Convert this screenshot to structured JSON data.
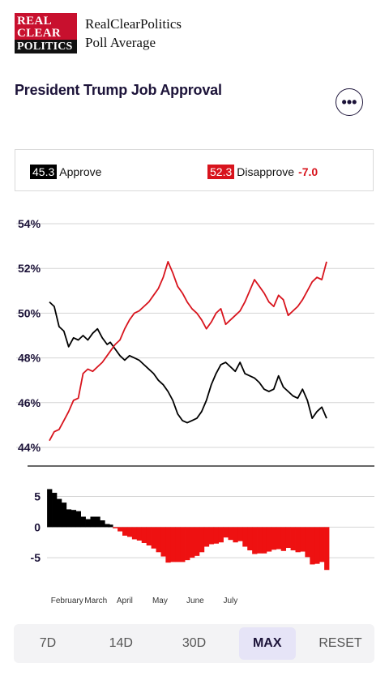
{
  "logo": {
    "line1": "REAL",
    "line2": "CLEAR",
    "line3": "POLITICS"
  },
  "brand": {
    "line1": "RealClearPolitics",
    "line2": "Poll Average"
  },
  "title": "President Trump Job Approval",
  "more_icon": "more-horizontal-icon",
  "legend": {
    "approve": {
      "value": "45.3",
      "label": "Approve",
      "color": "#000000"
    },
    "disapprove": {
      "value": "52.3",
      "label": "Disapprove",
      "color": "#d8141d"
    },
    "spread": "-7.0"
  },
  "tabs": [
    {
      "label": "7D",
      "active": false
    },
    {
      "label": "14D",
      "active": false
    },
    {
      "label": "30D",
      "active": false
    },
    {
      "label": "MAX",
      "active": true
    },
    {
      "label": "RESET",
      "active": false
    }
  ],
  "chart_data": [
    {
      "type": "line",
      "ylim": [
        44,
        54
      ],
      "y_ticks": [
        "54%",
        "52%",
        "50%",
        "48%",
        "46%",
        "44%"
      ],
      "grid": true,
      "x_tick_labels": [
        "February",
        "March",
        "April",
        "May",
        "June",
        "July"
      ],
      "series": [
        {
          "name": "Approve",
          "color": "#000000",
          "x": [
            0,
            3,
            6,
            9,
            12,
            15,
            18,
            21,
            24,
            27,
            30,
            33,
            36,
            38,
            41,
            44,
            47,
            50,
            53,
            56,
            59,
            62,
            65,
            68,
            71,
            74,
            77,
            80,
            83,
            86,
            89,
            92,
            95,
            98,
            101,
            104,
            107,
            110,
            113,
            116,
            119,
            122,
            125,
            128,
            131,
            134,
            137,
            140,
            143,
            146,
            149,
            152,
            155,
            158,
            161,
            164,
            167,
            170,
            173
          ],
          "values": [
            50.5,
            50.3,
            49.4,
            49.2,
            48.5,
            48.9,
            48.8,
            49.0,
            48.8,
            49.1,
            49.3,
            48.9,
            48.6,
            48.7,
            48.4,
            48.1,
            47.9,
            48.1,
            48.0,
            47.9,
            47.7,
            47.5,
            47.3,
            47.0,
            46.8,
            46.5,
            46.1,
            45.5,
            45.2,
            45.1,
            45.2,
            45.3,
            45.6,
            46.1,
            46.8,
            47.3,
            47.7,
            47.8,
            47.6,
            47.4,
            47.8,
            47.3,
            47.2,
            47.1,
            46.9,
            46.6,
            46.5,
            46.6,
            47.2,
            46.7,
            46.5,
            46.3,
            46.2,
            46.6,
            46.1,
            45.3,
            45.6,
            45.8,
            45.3
          ]
        },
        {
          "name": "Disapprove",
          "color": "#d8141d",
          "x": [
            0,
            3,
            6,
            9,
            12,
            15,
            18,
            21,
            24,
            27,
            30,
            33,
            36,
            38,
            41,
            44,
            47,
            50,
            53,
            56,
            59,
            62,
            65,
            68,
            71,
            74,
            77,
            80,
            83,
            86,
            89,
            92,
            95,
            98,
            101,
            104,
            107,
            110,
            113,
            116,
            119,
            122,
            125,
            128,
            131,
            134,
            137,
            140,
            143,
            146,
            149,
            152,
            155,
            158,
            161,
            164,
            167,
            170,
            173
          ],
          "values": [
            44.3,
            44.7,
            44.8,
            45.2,
            45.6,
            46.1,
            46.2,
            47.3,
            47.5,
            47.4,
            47.6,
            47.8,
            48.1,
            48.3,
            48.6,
            48.8,
            49.3,
            49.7,
            50.0,
            50.1,
            50.3,
            50.5,
            50.8,
            51.1,
            51.6,
            52.3,
            51.8,
            51.2,
            50.9,
            50.5,
            50.2,
            50.0,
            49.7,
            49.3,
            49.6,
            50.0,
            50.2,
            49.5,
            49.7,
            49.9,
            50.1,
            50.5,
            51.0,
            51.5,
            51.2,
            50.9,
            50.5,
            50.3,
            50.8,
            50.6,
            49.9,
            50.1,
            50.3,
            50.6,
            51.0,
            51.4,
            51.6,
            51.5,
            52.3
          ]
        }
      ]
    },
    {
      "type": "bar",
      "ylim": [
        -7.5,
        6
      ],
      "y_ticks": [
        "5",
        "0",
        "-5"
      ],
      "x_tick_labels": [
        "February",
        "March",
        "April",
        "May",
        "June",
        "July"
      ],
      "series": [
        {
          "name": "Spread",
          "x": [
            0,
            3,
            6,
            9,
            12,
            15,
            18,
            21,
            24,
            27,
            30,
            33,
            36,
            38,
            41,
            44,
            47,
            50,
            53,
            56,
            59,
            62,
            65,
            68,
            71,
            74,
            77,
            80,
            83,
            86,
            89,
            92,
            95,
            98,
            101,
            104,
            107,
            110,
            113,
            116,
            119,
            122,
            125,
            128,
            131,
            134,
            137,
            140,
            143,
            146,
            149,
            152,
            155,
            158,
            161,
            164,
            167,
            170,
            173
          ],
          "values": [
            6.2,
            5.6,
            4.6,
            4.0,
            2.9,
            2.8,
            2.6,
            1.7,
            1.3,
            1.7,
            1.7,
            1.1,
            0.5,
            0.4,
            -0.2,
            -0.7,
            -1.4,
            -1.6,
            -2.0,
            -2.2,
            -2.6,
            -3.0,
            -3.5,
            -4.1,
            -4.8,
            -5.8,
            -5.7,
            -5.7,
            -5.7,
            -5.4,
            -5.0,
            -4.7,
            -4.1,
            -3.2,
            -2.8,
            -2.7,
            -2.5,
            -1.7,
            -2.1,
            -2.5,
            -2.3,
            -3.2,
            -3.8,
            -4.4,
            -4.3,
            -4.3,
            -4.0,
            -3.7,
            -3.6,
            -3.9,
            -3.4,
            -3.8,
            -4.1,
            -4.0,
            -4.9,
            -6.1,
            -6.0,
            -5.7,
            -7.0
          ]
        }
      ]
    }
  ]
}
